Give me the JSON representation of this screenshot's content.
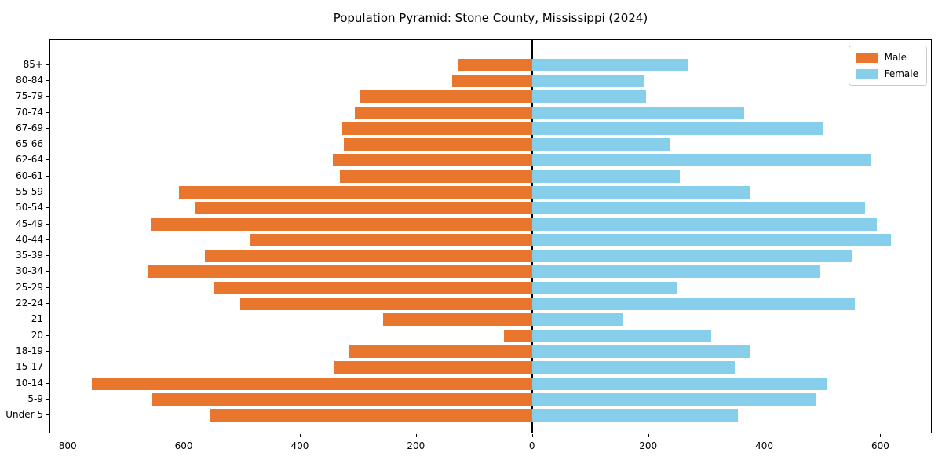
{
  "title": "Population Pyramid: Stone County, Mississippi (2024)",
  "legend": {
    "male_label": "Male",
    "female_label": "Female"
  },
  "colors": {
    "male": "#e8762d",
    "female": "#87ceeb",
    "axis": "#000000",
    "legend_border": "#cccccc"
  },
  "chart_data": {
    "type": "bar",
    "subtype": "population-pyramid",
    "title": "Population Pyramid: Stone County, Mississippi (2024)",
    "categories": [
      "85+",
      "80-84",
      "75-79",
      "70-74",
      "67-69",
      "65-66",
      "62-64",
      "60-61",
      "55-59",
      "50-54",
      "45-49",
      "40-44",
      "35-39",
      "30-34",
      "25-29",
      "22-24",
      "21",
      "20",
      "18-19",
      "15-17",
      "10-14",
      "5-9",
      "Under 5"
    ],
    "series": [
      {
        "name": "Male",
        "side": "left",
        "color": "#e8762d",
        "values": [
          127,
          137,
          296,
          305,
          327,
          324,
          343,
          331,
          608,
          580,
          657,
          487,
          564,
          662,
          548,
          503,
          256,
          48,
          316,
          340,
          758,
          655,
          556
        ]
      },
      {
        "name": "Female",
        "side": "right",
        "color": "#87ceeb",
        "values": [
          268,
          193,
          196,
          366,
          501,
          238,
          585,
          254,
          376,
          574,
          594,
          618,
          551,
          495,
          251,
          556,
          156,
          308,
          376,
          349,
          507,
          490,
          354
        ]
      }
    ],
    "x_axis": {
      "tick_values": [
        -800,
        -600,
        -400,
        -200,
        0,
        200,
        400,
        600
      ],
      "tick_labels": [
        "800",
        "600",
        "400",
        "200",
        "0",
        "200",
        "400",
        "600"
      ],
      "xlim": [
        -830,
        690
      ]
    },
    "y_axis": {
      "order": "top-to-bottom"
    },
    "grid": false,
    "zero_line": true,
    "legend_position": "upper right"
  }
}
